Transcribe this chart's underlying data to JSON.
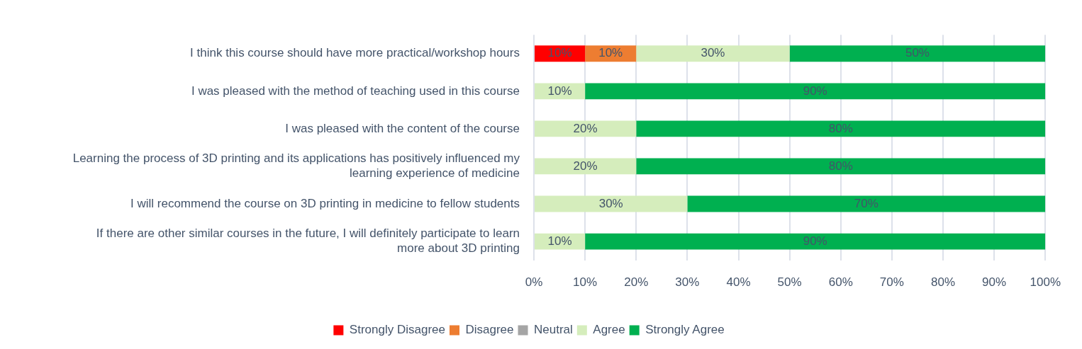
{
  "chart_data": {
    "type": "bar",
    "orientation": "horizontal",
    "stacked": true,
    "categories": [
      "I think this course should have more practical/workshop hours",
      "I was pleased with the method of teaching used in this course",
      "I was pleased with the content of the course",
      "Learning the process of 3D printing and its applications has positively influenced my learning experience of medicine",
      "I will recommend the course on 3D printing in medicine to fellow students",
      "If there are other similar courses in the future, I will definitely participate to learn more about 3D printing"
    ],
    "series": [
      {
        "name": "Strongly Disagree",
        "color": "#ff0000",
        "values": [
          10,
          0,
          0,
          0,
          0,
          0
        ],
        "value_labels": [
          "10%",
          null,
          null,
          null,
          null,
          null
        ]
      },
      {
        "name": "Disagree",
        "color": "#ed7d31",
        "values": [
          10,
          0,
          0,
          0,
          0,
          0
        ],
        "value_labels": [
          "10%",
          null,
          null,
          null,
          null,
          null
        ]
      },
      {
        "name": "Neutral",
        "color": "#a5a5a5",
        "values": [
          0,
          0,
          0,
          0,
          0,
          0
        ]
      },
      {
        "name": "Agree",
        "color": "#d5edbc",
        "values": [
          30,
          10,
          20,
          20,
          30,
          10
        ],
        "value_labels": [
          "30%",
          "10%",
          "20%",
          "20%",
          "30%",
          "10%"
        ]
      },
      {
        "name": "Strongly Agree",
        "color": "#00b050",
        "values": [
          50,
          90,
          80,
          80,
          70,
          90
        ],
        "value_labels": [
          "50%",
          "90%",
          "80%",
          "80%",
          "70%",
          "90%"
        ]
      }
    ],
    "xlim": [
      0,
      100
    ],
    "xticks": [
      {
        "value": 0,
        "label": "0%"
      },
      {
        "value": 10,
        "label": "10%"
      },
      {
        "value": 20,
        "label": "20%"
      },
      {
        "value": 30,
        "label": "30%"
      },
      {
        "value": 40,
        "label": "40%"
      },
      {
        "value": 50,
        "label": "50%"
      },
      {
        "value": 60,
        "label": "60%"
      },
      {
        "value": 70,
        "label": "70%"
      },
      {
        "value": 80,
        "label": "80%"
      },
      {
        "value": 90,
        "label": "90%"
      },
      {
        "value": 100,
        "label": "100%"
      }
    ],
    "grid": "x",
    "legend": "bottom"
  }
}
